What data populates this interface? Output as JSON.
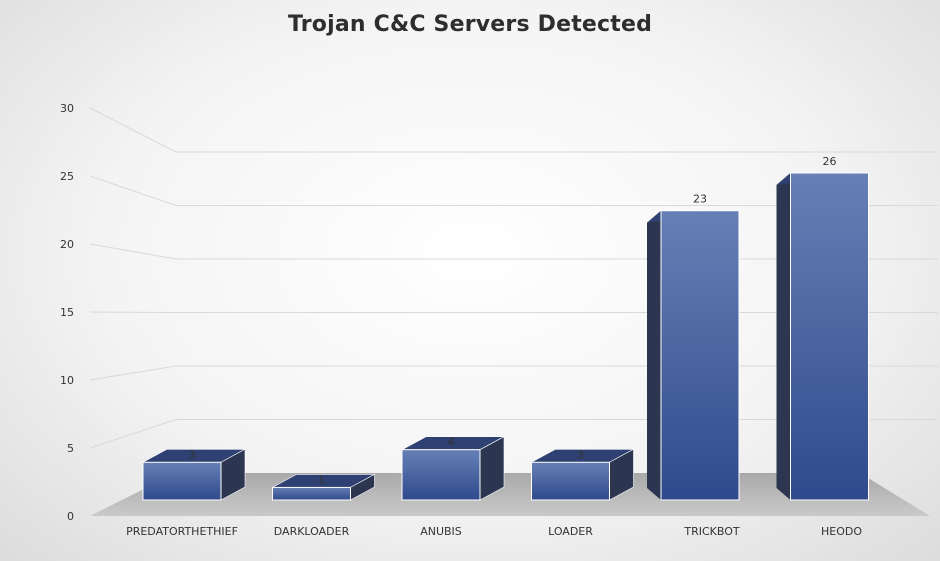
{
  "chart_data": {
    "type": "bar",
    "title": "Trojan C&C Servers Detected",
    "categories": [
      "PREDATORTHETHIEF",
      "DARKLOADER",
      "ANUBIS",
      "LOADER",
      "TRICKBOT",
      "HEODO"
    ],
    "values": [
      3,
      1,
      4,
      3,
      23,
      26
    ],
    "ylim": [
      0,
      30
    ],
    "yticks": [
      0,
      5,
      10,
      15,
      20,
      25,
      30
    ],
    "grid": true,
    "legend": "none",
    "colors": {
      "bar_front": "#3f5a9a",
      "bar_side": "#2d3650",
      "bar_top": "#2f4172",
      "floor": "#b5b5b5",
      "grid": "#d9d9d9"
    }
  }
}
